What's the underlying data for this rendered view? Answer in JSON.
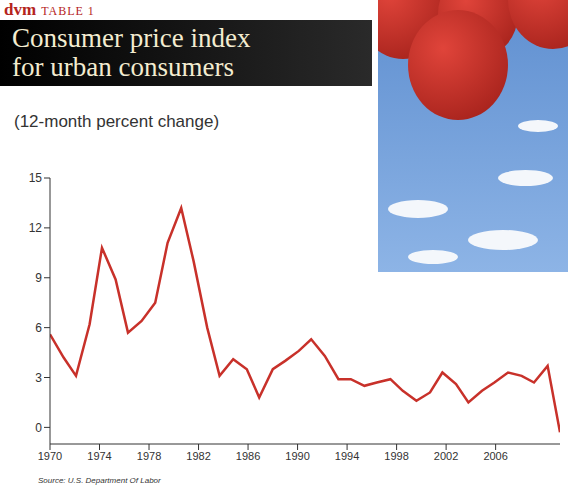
{
  "header": {
    "brand": "dvm",
    "label": "TABLE 1"
  },
  "chart_data": {
    "type": "line",
    "title": "Consumer price index for urban consumers",
    "subtitle": "(12-month percent change)",
    "source": "Source: U.S. Department Of Labor",
    "x": [
      1970.0,
      1971.1,
      1972.1,
      1973.2,
      1974.2,
      1975.3,
      1976.3,
      1977.4,
      1978.5,
      1979.5,
      1980.6,
      1981.6,
      1982.7,
      1983.7,
      1984.8,
      1985.9,
      1986.9,
      1988.0,
      1989.0,
      1990.1,
      1991.1,
      1992.2,
      1993.3,
      1994.3,
      1995.4,
      1996.4,
      1997.5,
      1998.5,
      1999.6,
      2000.7,
      2001.7,
      2002.8,
      2003.8,
      2004.9,
      2005.9,
      2007.0,
      2008.1,
      2009.1,
      2010.2,
      2011.2
    ],
    "values": [
      5.6,
      4.2,
      3.1,
      6.2,
      10.8,
      8.9,
      5.7,
      6.4,
      7.5,
      11.1,
      13.2,
      10.0,
      6.0,
      3.1,
      4.1,
      3.5,
      1.8,
      3.5,
      4.0,
      4.6,
      5.3,
      4.3,
      2.9,
      2.9,
      2.5,
      2.7,
      2.9,
      2.2,
      1.6,
      2.1,
      3.3,
      2.6,
      1.5,
      2.2,
      2.7,
      3.3,
      3.1,
      2.7,
      3.7,
      -0.3
    ],
    "color": "#c8312a",
    "xlim": [
      1970,
      2011.2
    ],
    "xticks": [
      1970,
      1974,
      1978,
      1982,
      1986,
      1990,
      1994,
      1998,
      2002,
      2006
    ],
    "ylim": [
      -1,
      15
    ],
    "yticks": [
      0,
      3,
      6,
      9,
      12,
      15
    ],
    "grid": false
  }
}
